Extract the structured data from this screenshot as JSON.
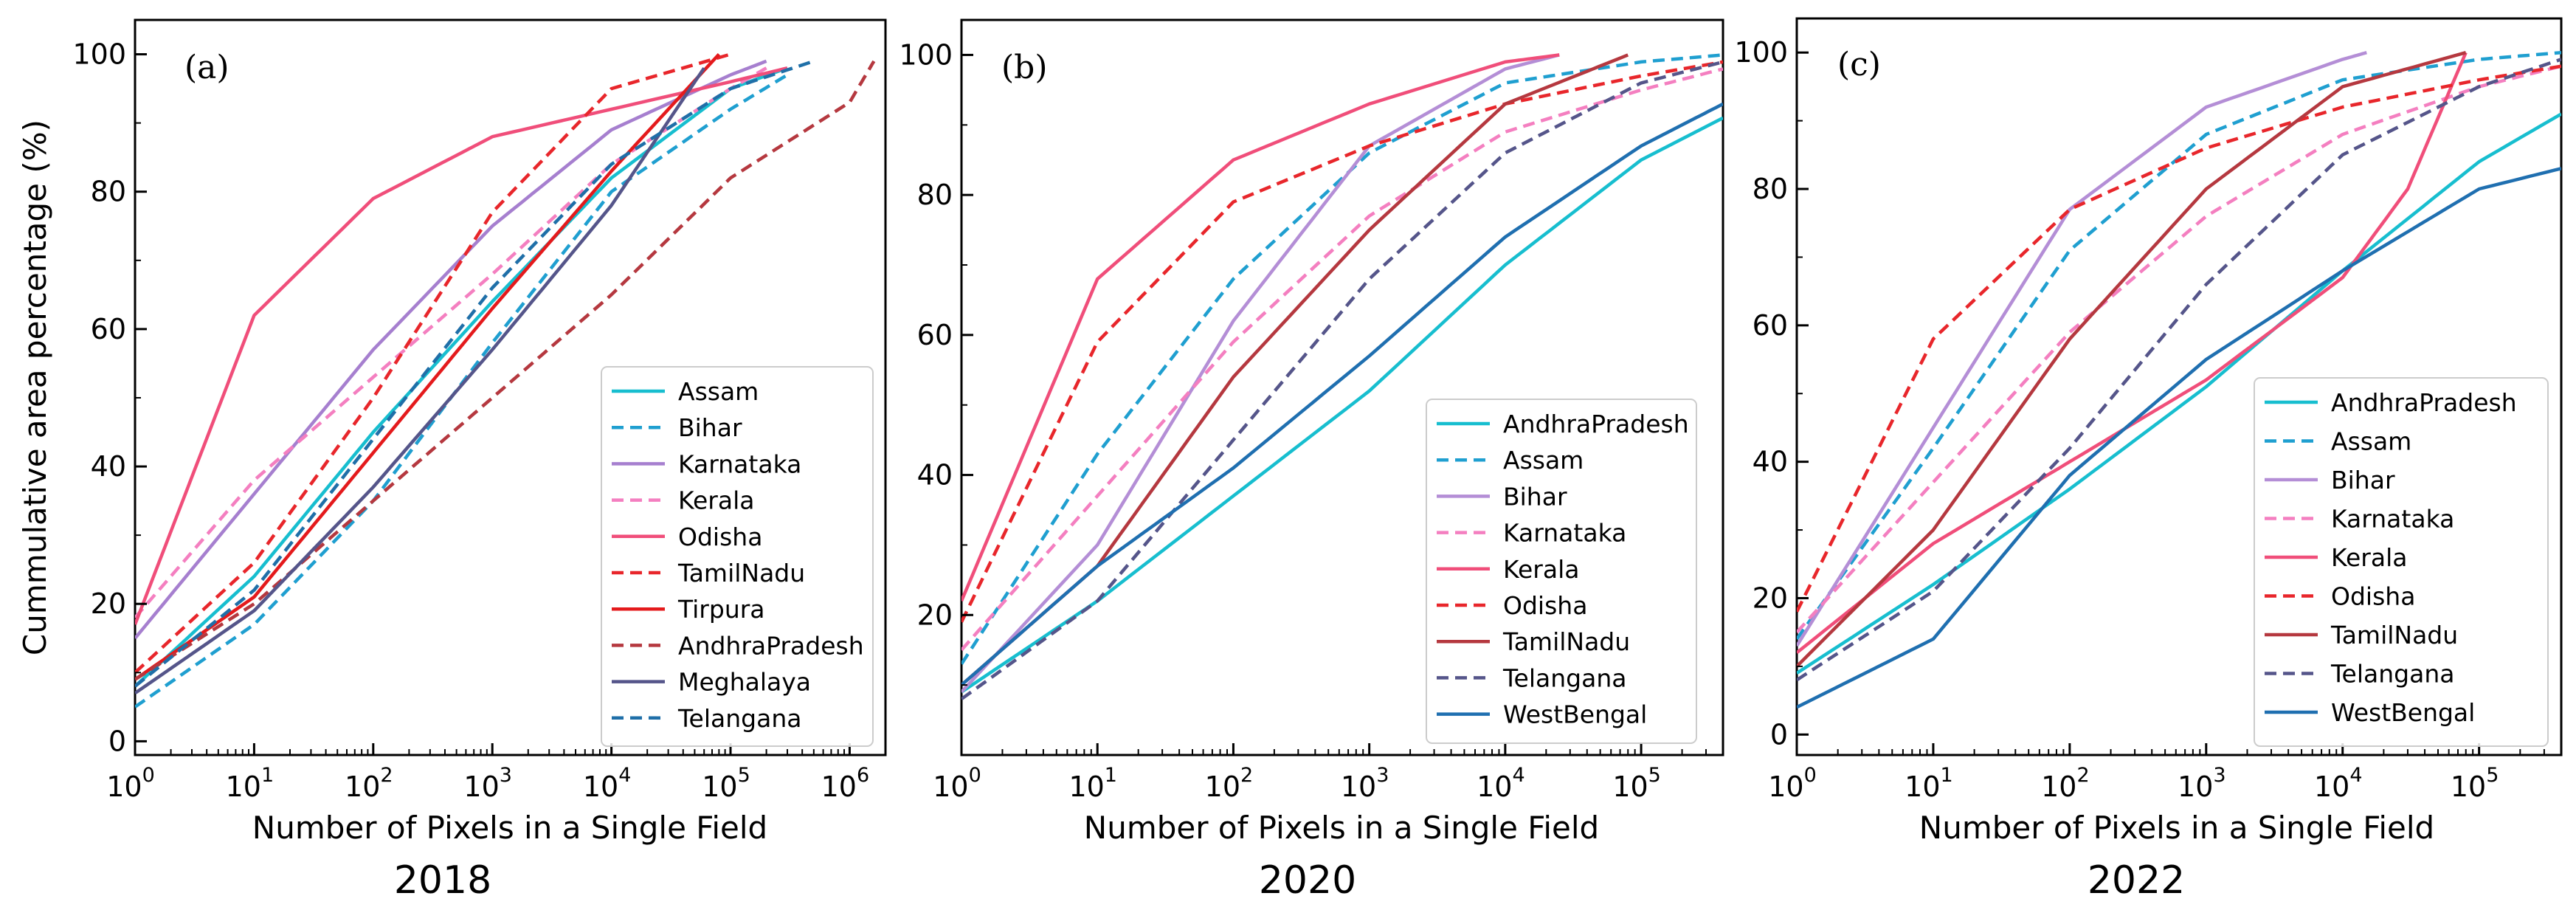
{
  "chart_data": [
    {
      "type": "line",
      "panel_label": "(a)",
      "year": "2018",
      "xlabel": "Number of Pixels in a Single Field",
      "ylabel": "Cummulative area percentage (%)",
      "xscale": "log",
      "xlim": [
        1,
        2000000
      ],
      "ylim": [
        -2,
        105
      ],
      "xticks": [
        {
          "v": 1,
          "exp": "0"
        },
        {
          "v": 10,
          "exp": "1"
        },
        {
          "v": 100,
          "exp": "2"
        },
        {
          "v": 1000,
          "exp": "3"
        },
        {
          "v": 10000,
          "exp": "4"
        },
        {
          "v": 100000,
          "exp": "5"
        },
        {
          "v": 1000000,
          "exp": "6"
        }
      ],
      "yticks": [
        0,
        20,
        40,
        60,
        80,
        100
      ],
      "legend_position": "lower-right",
      "series": [
        {
          "name": "Assam",
          "color": "#17becf",
          "dash": "solid",
          "points": [
            [
              1,
              8
            ],
            [
              10,
              24
            ],
            [
              100,
              45
            ],
            [
              1000,
              64
            ],
            [
              10000,
              82
            ],
            [
              100000,
              95
            ],
            [
              300000,
              98
            ]
          ]
        },
        {
          "name": "Bihar",
          "color": "#1f9fd0",
          "dash": "dashed",
          "points": [
            [
              1,
              5
            ],
            [
              10,
              17
            ],
            [
              100,
              35
            ],
            [
              1000,
              58
            ],
            [
              10000,
              80
            ],
            [
              100000,
              92
            ],
            [
              300000,
              97
            ]
          ]
        },
        {
          "name": "Karnataka",
          "color": "#a67fcf",
          "dash": "solid",
          "points": [
            [
              1,
              15
            ],
            [
              10,
              36
            ],
            [
              100,
              57
            ],
            [
              1000,
              75
            ],
            [
              10000,
              89
            ],
            [
              100000,
              97
            ],
            [
              200000,
              99
            ]
          ]
        },
        {
          "name": "Kerala",
          "color": "#f47fc0",
          "dash": "dashed",
          "points": [
            [
              1,
              18
            ],
            [
              10,
              38
            ],
            [
              100,
              53
            ],
            [
              1000,
              68
            ],
            [
              10000,
              84
            ],
            [
              100000,
              95
            ],
            [
              200000,
              98
            ]
          ]
        },
        {
          "name": "Odisha",
          "color": "#f04e7a",
          "dash": "solid",
          "points": [
            [
              1,
              17
            ],
            [
              10,
              62
            ],
            [
              100,
              79
            ],
            [
              1000,
              88
            ],
            [
              10000,
              92
            ],
            [
              100000,
              96
            ],
            [
              300000,
              98
            ]
          ]
        },
        {
          "name": "TamilNadu",
          "color": "#e8262b",
          "dash": "dashed",
          "points": [
            [
              1,
              10
            ],
            [
              10,
              26
            ],
            [
              100,
              50
            ],
            [
              1000,
              77
            ],
            [
              10000,
              95
            ],
            [
              100000,
              100
            ]
          ]
        },
        {
          "name": "Tirpura",
          "color": "#e41a1c",
          "dash": "solid",
          "points": [
            [
              1,
              9
            ],
            [
              10,
              21
            ],
            [
              100,
              42
            ],
            [
              1000,
              63
            ],
            [
              10000,
              83
            ],
            [
              80000,
              100
            ]
          ]
        },
        {
          "name": "AndhraPradesh",
          "color": "#b5383f",
          "dash": "dashed",
          "points": [
            [
              1,
              9
            ],
            [
              10,
              20
            ],
            [
              100,
              35
            ],
            [
              1000,
              50
            ],
            [
              10000,
              65
            ],
            [
              100000,
              82
            ],
            [
              1000000,
              93
            ],
            [
              1600000,
              99
            ]
          ]
        },
        {
          "name": "Meghalaya",
          "color": "#55558a",
          "dash": "solid",
          "points": [
            [
              1,
              7
            ],
            [
              10,
              19
            ],
            [
              100,
              37
            ],
            [
              1000,
              57
            ],
            [
              10000,
              78
            ],
            [
              60000,
              98
            ]
          ]
        },
        {
          "name": "Telangana",
          "color": "#1f6fa8",
          "dash": "dashed",
          "points": [
            [
              1,
              8
            ],
            [
              10,
              22
            ],
            [
              100,
              44
            ],
            [
              1000,
              66
            ],
            [
              10000,
              84
            ],
            [
              100000,
              95
            ],
            [
              500000,
              99
            ]
          ]
        }
      ]
    },
    {
      "type": "line",
      "panel_label": "(b)",
      "year": "2020",
      "xlabel": "Number of Pixels in a Single Field",
      "ylabel": "",
      "xscale": "log",
      "xlim": [
        1,
        400000
      ],
      "ylim": [
        0,
        105
      ],
      "xticks": [
        {
          "v": 1,
          "exp": "0"
        },
        {
          "v": 10,
          "exp": "1"
        },
        {
          "v": 100,
          "exp": "2"
        },
        {
          "v": 1000,
          "exp": "3"
        },
        {
          "v": 10000,
          "exp": "4"
        },
        {
          "v": 100000,
          "exp": "5"
        }
      ],
      "yticks": [
        20,
        40,
        60,
        80,
        100
      ],
      "legend_position": "lower-right",
      "series": [
        {
          "name": "AndhraPradesh",
          "color": "#17becf",
          "dash": "solid",
          "points": [
            [
              1,
              9
            ],
            [
              10,
              22
            ],
            [
              100,
              37
            ],
            [
              1000,
              52
            ],
            [
              10000,
              70
            ],
            [
              100000,
              85
            ],
            [
              400000,
              91
            ]
          ]
        },
        {
          "name": "Assam",
          "color": "#1f9fd0",
          "dash": "dashed",
          "points": [
            [
              1,
              13
            ],
            [
              10,
              43
            ],
            [
              100,
              68
            ],
            [
              1000,
              86
            ],
            [
              10000,
              96
            ],
            [
              100000,
              99
            ],
            [
              400000,
              100
            ]
          ]
        },
        {
          "name": "Bihar",
          "color": "#b48ed6",
          "dash": "solid",
          "points": [
            [
              1,
              9
            ],
            [
              10,
              30
            ],
            [
              100,
              62
            ],
            [
              1000,
              87
            ],
            [
              10000,
              98
            ],
            [
              25000,
              100
            ]
          ]
        },
        {
          "name": "Karnataka",
          "color": "#f47fc0",
          "dash": "dashed",
          "points": [
            [
              1,
              15
            ],
            [
              10,
              37
            ],
            [
              100,
              59
            ],
            [
              1000,
              77
            ],
            [
              10000,
              89
            ],
            [
              100000,
              95
            ],
            [
              400000,
              98
            ]
          ]
        },
        {
          "name": "Kerala",
          "color": "#f04e7a",
          "dash": "solid",
          "points": [
            [
              1,
              22
            ],
            [
              10,
              68
            ],
            [
              100,
              85
            ],
            [
              1000,
              93
            ],
            [
              10000,
              99
            ],
            [
              25000,
              100
            ]
          ]
        },
        {
          "name": "Odisha",
          "color": "#e8262b",
          "dash": "dashed",
          "points": [
            [
              1,
              19
            ],
            [
              10,
              59
            ],
            [
              100,
              79
            ],
            [
              1000,
              87
            ],
            [
              10000,
              93
            ],
            [
              100000,
              97
            ],
            [
              400000,
              99
            ]
          ]
        },
        {
          "name": "TamilNadu",
          "color": "#b5383f",
          "dash": "solid",
          "points": [
            [
              1,
              10
            ],
            [
              10,
              27
            ],
            [
              100,
              54
            ],
            [
              1000,
              75
            ],
            [
              10000,
              93
            ],
            [
              80000,
              100
            ]
          ]
        },
        {
          "name": "Telangana",
          "color": "#55558a",
          "dash": "dashed",
          "points": [
            [
              1,
              8
            ],
            [
              10,
              22
            ],
            [
              100,
              45
            ],
            [
              1000,
              68
            ],
            [
              10000,
              86
            ],
            [
              100000,
              96
            ],
            [
              400000,
              99
            ]
          ]
        },
        {
          "name": "WestBengal",
          "color": "#1f6fb0",
          "dash": "solid",
          "points": [
            [
              1,
              10
            ],
            [
              10,
              27
            ],
            [
              100,
              41
            ],
            [
              1000,
              57
            ],
            [
              10000,
              74
            ],
            [
              100000,
              87
            ],
            [
              400000,
              93
            ]
          ]
        }
      ]
    },
    {
      "type": "line",
      "panel_label": "(c)",
      "year": "2022",
      "xlabel": "Number of Pixels in a Single Field",
      "ylabel": "",
      "xscale": "log",
      "xlim": [
        1,
        400000
      ],
      "ylim": [
        -3,
        105
      ],
      "xticks": [
        {
          "v": 1,
          "exp": "0"
        },
        {
          "v": 10,
          "exp": "1"
        },
        {
          "v": 100,
          "exp": "2"
        },
        {
          "v": 1000,
          "exp": "3"
        },
        {
          "v": 10000,
          "exp": "4"
        },
        {
          "v": 100000,
          "exp": "5"
        }
      ],
      "yticks": [
        0,
        20,
        40,
        60,
        80,
        100
      ],
      "legend_position": "lower-right",
      "series": [
        {
          "name": "AndhraPradesh",
          "color": "#17becf",
          "dash": "solid",
          "points": [
            [
              1,
              9
            ],
            [
              10,
              22
            ],
            [
              100,
              36
            ],
            [
              1000,
              51
            ],
            [
              10000,
              68
            ],
            [
              100000,
              84
            ],
            [
              400000,
              91
            ]
          ]
        },
        {
          "name": "Assam",
          "color": "#1f9fd0",
          "dash": "dashed",
          "points": [
            [
              1,
              14
            ],
            [
              10,
              42
            ],
            [
              100,
              71
            ],
            [
              1000,
              88
            ],
            [
              10000,
              96
            ],
            [
              100000,
              99
            ],
            [
              400000,
              100
            ]
          ]
        },
        {
          "name": "Bihar",
          "color": "#b48ed6",
          "dash": "solid",
          "points": [
            [
              1,
              13
            ],
            [
              10,
              45
            ],
            [
              100,
              77
            ],
            [
              1000,
              92
            ],
            [
              10000,
              99
            ],
            [
              15000,
              100
            ]
          ]
        },
        {
          "name": "Karnataka",
          "color": "#f47fc0",
          "dash": "dashed",
          "points": [
            [
              1,
              15
            ],
            [
              10,
              37
            ],
            [
              100,
              59
            ],
            [
              1000,
              76
            ],
            [
              10000,
              88
            ],
            [
              100000,
              95
            ],
            [
              400000,
              98
            ]
          ]
        },
        {
          "name": "Kerala",
          "color": "#f04e7a",
          "dash": "solid",
          "points": [
            [
              1,
              12
            ],
            [
              10,
              28
            ],
            [
              100,
              40
            ],
            [
              1000,
              52
            ],
            [
              10000,
              67
            ],
            [
              30000,
              80
            ],
            [
              80000,
              100
            ]
          ]
        },
        {
          "name": "Odisha",
          "color": "#e8262b",
          "dash": "dashed",
          "points": [
            [
              1,
              18
            ],
            [
              10,
              58
            ],
            [
              100,
              77
            ],
            [
              1000,
              86
            ],
            [
              10000,
              92
            ],
            [
              100000,
              96
            ],
            [
              400000,
              98
            ]
          ]
        },
        {
          "name": "TamilNadu",
          "color": "#b5383f",
          "dash": "solid",
          "points": [
            [
              1,
              10
            ],
            [
              10,
              30
            ],
            [
              100,
              58
            ],
            [
              1000,
              80
            ],
            [
              10000,
              95
            ],
            [
              80000,
              100
            ]
          ]
        },
        {
          "name": "Telangana",
          "color": "#55558a",
          "dash": "dashed",
          "points": [
            [
              1,
              8
            ],
            [
              10,
              21
            ],
            [
              100,
              42
            ],
            [
              1000,
              66
            ],
            [
              10000,
              85
            ],
            [
              100000,
              95
            ],
            [
              400000,
              99
            ]
          ]
        },
        {
          "name": "WestBengal",
          "color": "#1f6fb0",
          "dash": "solid",
          "points": [
            [
              1,
              4
            ],
            [
              10,
              14
            ],
            [
              100,
              38
            ],
            [
              1000,
              55
            ],
            [
              10000,
              68
            ],
            [
              100000,
              80
            ],
            [
              400000,
              83
            ]
          ]
        }
      ]
    }
  ]
}
